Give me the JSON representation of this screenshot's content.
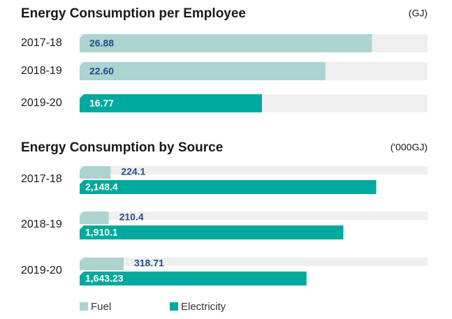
{
  "chart_data": [
    {
      "type": "bar",
      "title": "Energy Consumption per Employee",
      "unit": "(GJ)",
      "categories": [
        "2017-18",
        "2018-19",
        "2019-20"
      ],
      "values": [
        26.88,
        22.6,
        16.77
      ],
      "value_labels": [
        "26.88",
        "22.60",
        "16.77"
      ],
      "colors": [
        "#acd3cf",
        "#acd3cf",
        "#00a99d"
      ],
      "xlim": [
        0,
        32
      ]
    },
    {
      "type": "grouped_bar",
      "title": "Energy Consumption by Source",
      "unit": "('000GJ)",
      "categories": [
        "2017-18",
        "2018-19",
        "2019-20"
      ],
      "series": [
        {
          "name": "Fuel",
          "color": "#acd3cf",
          "values": [
            224.1,
            210.4,
            318.71
          ]
        },
        {
          "name": "Electricity",
          "color": "#00a99d",
          "values": [
            2148.4,
            1910.1,
            1643.23
          ],
          "value_labels": [
            "2,148.4",
            "1,910.1",
            "1,643.23"
          ]
        }
      ],
      "xlim": [
        0,
        2520
      ]
    }
  ]
}
